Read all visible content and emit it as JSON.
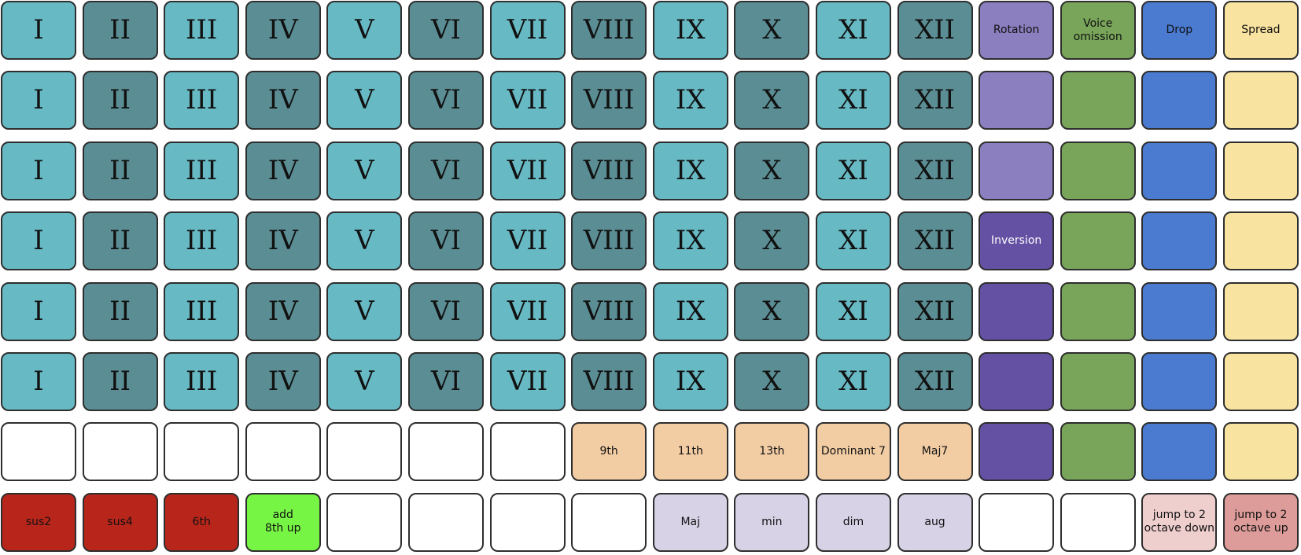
{
  "colors": {
    "teal_light": "#67b9c4",
    "teal_dark": "#5b8e94",
    "purple_light": "#8b7fbf",
    "purple_dark": "#6451a3",
    "green": "#78a55a",
    "blue": "#4a7bd0",
    "yellow": "#f9e3a0",
    "orange": "#f2cda4",
    "red": "#b8261b",
    "lime": "#77f545",
    "lavender": "#d8d2e6",
    "pink_light": "#eecfcd",
    "pink": "#dd9c99",
    "white": "#ffffff"
  },
  "numerals": [
    "I",
    "II",
    "III",
    "IV",
    "V",
    "VI",
    "VII",
    "VIII",
    "IX",
    "X",
    "XI",
    "XII"
  ],
  "rows": [
    {
      "extra": [
        {
          "label": "Rotation",
          "color": "purple_light"
        },
        {
          "label": "Voice\nomission",
          "color": "green"
        },
        {
          "label": "Drop",
          "color": "blue"
        },
        {
          "label": "Spread",
          "color": "yellow"
        }
      ]
    },
    {
      "extra": [
        {
          "label": "",
          "color": "purple_light"
        },
        {
          "label": "",
          "color": "green"
        },
        {
          "label": "",
          "color": "blue"
        },
        {
          "label": "",
          "color": "yellow"
        }
      ]
    },
    {
      "extra": [
        {
          "label": "",
          "color": "purple_light"
        },
        {
          "label": "",
          "color": "green"
        },
        {
          "label": "",
          "color": "blue"
        },
        {
          "label": "",
          "color": "yellow"
        }
      ]
    },
    {
      "extra": [
        {
          "label": "Inversion",
          "color": "purple_dark",
          "text": "#ffffff"
        },
        {
          "label": "",
          "color": "green"
        },
        {
          "label": "",
          "color": "blue"
        },
        {
          "label": "",
          "color": "yellow"
        }
      ]
    },
    {
      "extra": [
        {
          "label": "",
          "color": "purple_dark"
        },
        {
          "label": "",
          "color": "green"
        },
        {
          "label": "",
          "color": "blue"
        },
        {
          "label": "",
          "color": "yellow"
        }
      ]
    },
    {
      "extra": [
        {
          "label": "",
          "color": "purple_dark"
        },
        {
          "label": "",
          "color": "green"
        },
        {
          "label": "",
          "color": "blue"
        },
        {
          "label": "",
          "color": "yellow"
        }
      ]
    }
  ],
  "row7": [
    {
      "label": "",
      "color": "white"
    },
    {
      "label": "",
      "color": "white"
    },
    {
      "label": "",
      "color": "white"
    },
    {
      "label": "",
      "color": "white"
    },
    {
      "label": "",
      "color": "white"
    },
    {
      "label": "",
      "color": "white"
    },
    {
      "label": "",
      "color": "white"
    },
    {
      "label": "9th",
      "color": "orange"
    },
    {
      "label": "11th",
      "color": "orange"
    },
    {
      "label": "13th",
      "color": "orange"
    },
    {
      "label": "Dominant 7",
      "color": "orange"
    },
    {
      "label": "Maj7",
      "color": "orange"
    },
    {
      "label": "",
      "color": "purple_dark"
    },
    {
      "label": "",
      "color": "green"
    },
    {
      "label": "",
      "color": "blue"
    },
    {
      "label": "",
      "color": "yellow"
    }
  ],
  "row8": [
    {
      "label": "sus2",
      "color": "red"
    },
    {
      "label": "sus4",
      "color": "red"
    },
    {
      "label": "6th",
      "color": "red"
    },
    {
      "label": "add\n8th up",
      "color": "lime"
    },
    {
      "label": "",
      "color": "white"
    },
    {
      "label": "",
      "color": "white"
    },
    {
      "label": "",
      "color": "white"
    },
    {
      "label": "",
      "color": "white"
    },
    {
      "label": "Maj",
      "color": "lavender"
    },
    {
      "label": "min",
      "color": "lavender"
    },
    {
      "label": "dim",
      "color": "lavender"
    },
    {
      "label": "aug",
      "color": "lavender"
    },
    {
      "label": "",
      "color": "white"
    },
    {
      "label": "",
      "color": "white"
    },
    {
      "label": "jump to 2\noctave down",
      "color": "pink_light"
    },
    {
      "label": "jump to 2\noctave up",
      "color": "pink"
    }
  ]
}
